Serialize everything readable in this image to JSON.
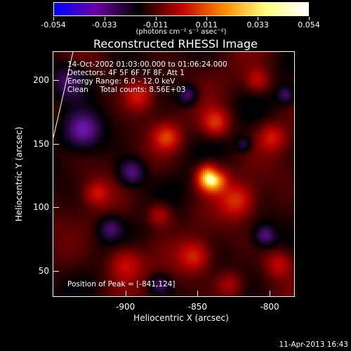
{
  "colorbar": {
    "tick_labels": [
      "-0.054",
      "-0.033",
      "-0.011",
      "0.011",
      "0.033",
      "0.054"
    ],
    "units": "(photons cm⁻² s⁻¹ asec⁻²)",
    "colors": [
      "#0000ff",
      "#6a00a0",
      "#000000",
      "#c00000",
      "#ff8800",
      "#ffff80",
      "#ffffff"
    ]
  },
  "chart_data": {
    "type": "heatmap",
    "title": "Reconstructed RHESSI Image",
    "xlabel": "Heliocentric X (arcsec)",
    "ylabel": "Heliocentric Y (arcsec)",
    "xlim": [
      -950,
      -783
    ],
    "ylim": [
      30,
      222
    ],
    "x_ticks": [
      "-900",
      "-850",
      "-800"
    ],
    "y_ticks": [
      "50",
      "100",
      "150",
      "200"
    ],
    "x_tick_values": [
      -900,
      -850,
      -800
    ],
    "y_tick_values": [
      50,
      100,
      150,
      200
    ],
    "value_range": [
      -0.054,
      0.054
    ],
    "peak": [
      -841,
      124
    ],
    "info": [
      "14-Oct-2002 01:03:00.000 to 01:06:24.000",
      "Detectors: 4F 5F 6F 7F 8F, Att 1",
      "Energy Range: 6.0 - 12.0 keV",
      "Clean     Total counts: 8.56E+03"
    ],
    "peak_label": "Position of Peak = [-841,124]"
  },
  "footer": {
    "timestamp": "11-Apr-2013 16:43"
  }
}
